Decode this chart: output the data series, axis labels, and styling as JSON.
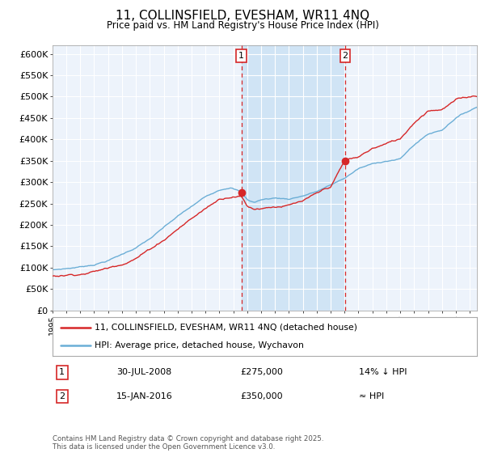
{
  "title": "11, COLLINSFIELD, EVESHAM, WR11 4NQ",
  "subtitle": "Price paid vs. HM Land Registry's House Price Index (HPI)",
  "ylim": [
    0,
    620000
  ],
  "xlim_start": 1995.0,
  "xlim_end": 2025.5,
  "hpi_color": "#6baed6",
  "price_color": "#d62728",
  "shade_color": "#d0e4f5",
  "marker1_x": 2008.58,
  "marker1_y": 275000,
  "marker1_label": "1",
  "marker1_date": "30-JUL-2008",
  "marker1_price": "£275,000",
  "marker1_note": "14% ↓ HPI",
  "marker2_x": 2016.04,
  "marker2_y": 350000,
  "marker2_label": "2",
  "marker2_date": "15-JAN-2016",
  "marker2_price": "£350,000",
  "marker2_note": "≈ HPI",
  "legend_line1": "11, COLLINSFIELD, EVESHAM, WR11 4NQ (detached house)",
  "legend_line2": "HPI: Average price, detached house, Wychavon",
  "footer": "Contains HM Land Registry data © Crown copyright and database right 2025.\nThis data is licensed under the Open Government Licence v3.0.",
  "background_color": "#ffffff",
  "plot_bg_color": "#edf3fb"
}
